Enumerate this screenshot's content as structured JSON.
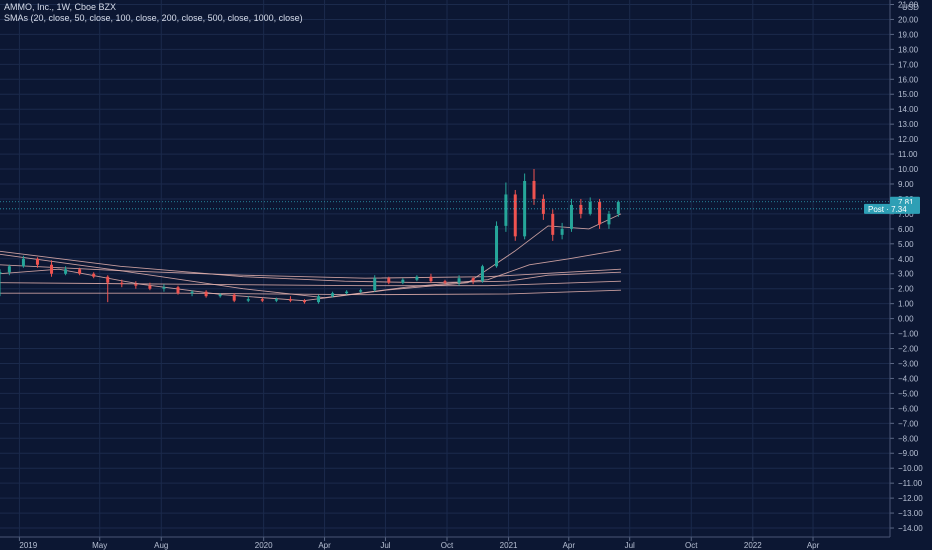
{
  "header": {
    "symbol_line": "AMMO, Inc., 1W, Cboe BZX",
    "indicator_line": "SMAs (20, close, 50, close, 100, close, 200, close, 500, close, 1000, close)"
  },
  "axis": {
    "currency": "USD",
    "price_badge": "7.81",
    "post_badge": "Post · 7.34"
  },
  "colors": {
    "background": "#0c1733",
    "up": "#26a69a",
    "down": "#ef5350",
    "badge": "#2e9fb5",
    "sma": "#e8b4b0"
  },
  "chart_data": {
    "type": "candlestick",
    "title": "AMMO, Inc., 1W, Cboe BZX",
    "y_unit": "USD",
    "ylim": [
      -14.6,
      21.3
    ],
    "y_ticks": [
      21,
      20,
      19,
      18,
      17,
      16,
      15,
      14,
      13,
      12,
      11,
      10,
      9,
      8,
      7,
      6,
      5,
      4,
      3,
      2,
      1,
      0,
      -1,
      -2,
      -3,
      -4,
      -5,
      -6,
      -7,
      -8,
      -9,
      -10,
      -11,
      -12,
      -13,
      -14
    ],
    "x_tick_labels": [
      "2019",
      "May",
      "Aug",
      "2020",
      "Apr",
      "Jul",
      "Oct",
      "2021",
      "Apr",
      "Jul",
      "Oct",
      "2022",
      "Apr"
    ],
    "x_tick_dates": [
      "2019-01-01",
      "2019-05-01",
      "2019-08-01",
      "2020-01-01",
      "2020-04-01",
      "2020-07-01",
      "2020-10-01",
      "2021-01-01",
      "2021-04-01",
      "2021-07-01",
      "2021-10-01",
      "2022-01-01",
      "2022-04-01"
    ],
    "x_start": "2018-12-03",
    "x_end": "2022-07-25",
    "last_price": 7.81,
    "post_price": 7.34,
    "candles": [
      {
        "date": "2018-12-03",
        "o": 3.0,
        "h": 3.3,
        "l": 1.5,
        "c": 3.1
      },
      {
        "date": "2018-12-17",
        "o": 3.1,
        "h": 3.6,
        "l": 2.9,
        "c": 3.5
      },
      {
        "date": "2019-01-07",
        "o": 3.5,
        "h": 4.2,
        "l": 3.4,
        "c": 4.0
      },
      {
        "date": "2019-01-28",
        "o": 4.0,
        "h": 4.1,
        "l": 3.4,
        "c": 3.6
      },
      {
        "date": "2019-02-18",
        "o": 3.6,
        "h": 3.9,
        "l": 2.8,
        "c": 3.0
      },
      {
        "date": "2019-03-11",
        "o": 3.0,
        "h": 3.5,
        "l": 2.9,
        "c": 3.3
      },
      {
        "date": "2019-04-01",
        "o": 3.3,
        "h": 3.4,
        "l": 2.9,
        "c": 3.0
      },
      {
        "date": "2019-04-22",
        "o": 3.0,
        "h": 3.1,
        "l": 2.7,
        "c": 2.8
      },
      {
        "date": "2019-05-13",
        "o": 2.8,
        "h": 2.9,
        "l": 1.1,
        "c": 2.4
      },
      {
        "date": "2019-06-03",
        "o": 2.4,
        "h": 2.6,
        "l": 2.1,
        "c": 2.3
      },
      {
        "date": "2019-06-24",
        "o": 2.3,
        "h": 2.5,
        "l": 2.0,
        "c": 2.2
      },
      {
        "date": "2019-07-15",
        "o": 2.2,
        "h": 2.4,
        "l": 1.9,
        "c": 2.0
      },
      {
        "date": "2019-08-05",
        "o": 2.0,
        "h": 2.3,
        "l": 1.8,
        "c": 2.1
      },
      {
        "date": "2019-08-26",
        "o": 2.1,
        "h": 2.2,
        "l": 1.6,
        "c": 1.7
      },
      {
        "date": "2019-09-16",
        "o": 1.7,
        "h": 1.9,
        "l": 1.5,
        "c": 1.8
      },
      {
        "date": "2019-10-07",
        "o": 1.8,
        "h": 1.9,
        "l": 1.4,
        "c": 1.5
      },
      {
        "date": "2019-10-28",
        "o": 1.5,
        "h": 1.7,
        "l": 1.4,
        "c": 1.6
      },
      {
        "date": "2019-11-18",
        "o": 1.6,
        "h": 1.7,
        "l": 1.1,
        "c": 1.2
      },
      {
        "date": "2019-12-09",
        "o": 1.2,
        "h": 1.5,
        "l": 1.1,
        "c": 1.3
      },
      {
        "date": "2019-12-30",
        "o": 1.3,
        "h": 1.4,
        "l": 1.1,
        "c": 1.2
      },
      {
        "date": "2020-01-20",
        "o": 1.2,
        "h": 1.4,
        "l": 1.1,
        "c": 1.3
      },
      {
        "date": "2020-02-10",
        "o": 1.3,
        "h": 1.5,
        "l": 1.1,
        "c": 1.2
      },
      {
        "date": "2020-03-02",
        "o": 1.2,
        "h": 1.3,
        "l": 1.0,
        "c": 1.1
      },
      {
        "date": "2020-03-23",
        "o": 1.1,
        "h": 1.6,
        "l": 1.0,
        "c": 1.5
      },
      {
        "date": "2020-04-13",
        "o": 1.5,
        "h": 1.8,
        "l": 1.4,
        "c": 1.7
      },
      {
        "date": "2020-05-04",
        "o": 1.7,
        "h": 1.9,
        "l": 1.6,
        "c": 1.8
      },
      {
        "date": "2020-05-25",
        "o": 1.8,
        "h": 2.0,
        "l": 1.7,
        "c": 1.9
      },
      {
        "date": "2020-06-15",
        "o": 1.9,
        "h": 2.9,
        "l": 1.8,
        "c": 2.7
      },
      {
        "date": "2020-07-06",
        "o": 2.7,
        "h": 2.8,
        "l": 2.3,
        "c": 2.4
      },
      {
        "date": "2020-07-27",
        "o": 2.4,
        "h": 2.7,
        "l": 2.3,
        "c": 2.6
      },
      {
        "date": "2020-08-17",
        "o": 2.6,
        "h": 2.9,
        "l": 2.5,
        "c": 2.8
      },
      {
        "date": "2020-09-07",
        "o": 2.8,
        "h": 3.0,
        "l": 2.4,
        "c": 2.5
      },
      {
        "date": "2020-09-28",
        "o": 2.5,
        "h": 2.6,
        "l": 2.3,
        "c": 2.4
      },
      {
        "date": "2020-10-19",
        "o": 2.4,
        "h": 2.9,
        "l": 2.2,
        "c": 2.7
      },
      {
        "date": "2020-11-09",
        "o": 2.7,
        "h": 2.8,
        "l": 2.3,
        "c": 2.5
      },
      {
        "date": "2020-11-23",
        "o": 2.5,
        "h": 3.6,
        "l": 2.4,
        "c": 3.5
      },
      {
        "date": "2020-12-14",
        "o": 3.5,
        "h": 6.5,
        "l": 3.4,
        "c": 6.2
      },
      {
        "date": "2020-12-28",
        "o": 6.2,
        "h": 9.1,
        "l": 5.8,
        "c": 8.3
      },
      {
        "date": "2021-01-11",
        "o": 8.3,
        "h": 8.6,
        "l": 5.2,
        "c": 5.5
      },
      {
        "date": "2021-01-25",
        "o": 5.5,
        "h": 9.7,
        "l": 5.3,
        "c": 9.2
      },
      {
        "date": "2021-02-08",
        "o": 9.2,
        "h": 10.0,
        "l": 7.6,
        "c": 8.0
      },
      {
        "date": "2021-02-22",
        "o": 8.0,
        "h": 8.3,
        "l": 6.6,
        "c": 7.0
      },
      {
        "date": "2021-03-08",
        "o": 7.0,
        "h": 7.3,
        "l": 5.2,
        "c": 5.6
      },
      {
        "date": "2021-03-22",
        "o": 5.6,
        "h": 6.4,
        "l": 5.3,
        "c": 6.0
      },
      {
        "date": "2021-04-05",
        "o": 6.0,
        "h": 8.0,
        "l": 5.8,
        "c": 7.6
      },
      {
        "date": "2021-04-19",
        "o": 7.6,
        "h": 8.0,
        "l": 6.7,
        "c": 7.0
      },
      {
        "date": "2021-05-03",
        "o": 7.0,
        "h": 8.1,
        "l": 6.9,
        "c": 7.8
      },
      {
        "date": "2021-05-17",
        "o": 7.8,
        "h": 8.0,
        "l": 6.0,
        "c": 6.3
      },
      {
        "date": "2021-05-31",
        "o": 6.3,
        "h": 7.2,
        "l": 6.0,
        "c": 7.0
      },
      {
        "date": "2021-06-14",
        "o": 7.0,
        "h": 7.9,
        "l": 6.8,
        "c": 7.81
      }
    ],
    "series": [
      {
        "x": [
          "2018-12-03",
          "2019-03-01",
          "2019-07-01",
          "2019-11-01",
          "2020-03-01",
          "2020-07-01",
          "2020-11-01",
          "2021-01-10",
          "2021-03-01",
          "2021-05-01",
          "2021-06-18"
        ],
        "values": [
          3.0,
          3.3,
          2.3,
          1.6,
          1.2,
          1.9,
          2.4,
          4.5,
          6.2,
          6.0,
          7.0
        ]
      },
      {
        "x": [
          "2018-12-03",
          "2019-06-01",
          "2019-12-01",
          "2020-04-01",
          "2020-08-01",
          "2020-12-01",
          "2021-02-01",
          "2021-04-01",
          "2021-06-18"
        ],
        "values": [
          4.3,
          3.2,
          2.0,
          1.4,
          2.1,
          2.6,
          3.6,
          4.0,
          4.6
        ]
      },
      {
        "x": [
          "2018-12-03",
          "2019-06-01",
          "2019-12-01",
          "2020-05-01",
          "2020-09-01",
          "2021-01-01",
          "2021-03-01",
          "2021-06-18"
        ],
        "values": [
          4.5,
          3.5,
          2.8,
          2.5,
          2.4,
          2.5,
          2.9,
          3.1
        ]
      },
      {
        "x": [
          "2018-12-03",
          "2019-06-01",
          "2019-12-01",
          "2020-06-01",
          "2020-12-01",
          "2021-06-18"
        ],
        "values": [
          3.6,
          3.2,
          2.9,
          2.7,
          2.8,
          3.3
        ]
      },
      {
        "x": [
          "2018-12-03",
          "2019-09-01",
          "2020-06-01",
          "2020-12-01",
          "2021-06-18"
        ],
        "values": [
          2.4,
          2.3,
          2.2,
          2.2,
          2.5
        ]
      },
      {
        "x": [
          "2018-12-03",
          "2019-09-01",
          "2020-06-01",
          "2021-01-01",
          "2021-06-18"
        ],
        "values": [
          1.7,
          1.7,
          1.6,
          1.65,
          1.9
        ]
      }
    ]
  }
}
